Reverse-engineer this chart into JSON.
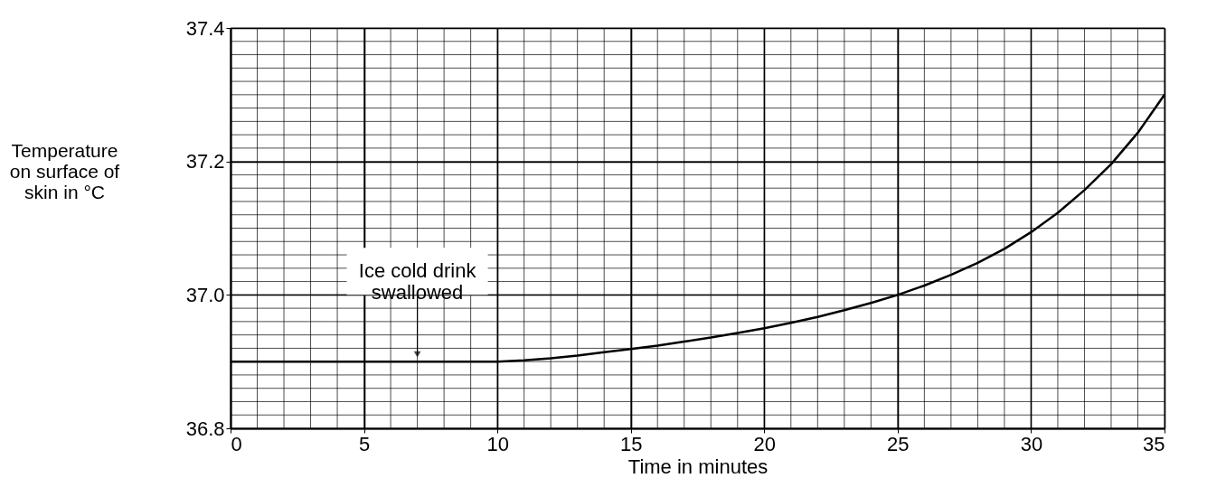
{
  "chart_data": {
    "type": "line",
    "xlabel": "Time in minutes",
    "ylabel": "Temperature\non surface of\nskin in °C",
    "x": [
      0,
      2,
      4,
      6,
      8,
      10,
      11,
      12,
      13,
      14,
      15,
      16,
      17,
      18,
      19,
      20,
      21,
      22,
      23,
      24,
      25,
      26,
      27,
      28,
      29,
      30,
      31,
      32,
      33,
      34,
      35
    ],
    "series": [
      {
        "color": "#000000",
        "values": [
          36.9,
          36.9,
          36.9,
          36.9,
          36.9,
          36.9,
          36.902,
          36.905,
          36.909,
          36.914,
          36.919,
          36.924,
          36.93,
          36.936,
          36.943,
          36.95,
          36.958,
          36.967,
          36.977,
          36.988,
          37.0,
          37.014,
          37.03,
          37.048,
          37.069,
          37.094,
          37.123,
          37.157,
          37.196,
          37.243,
          37.3
        ]
      }
    ],
    "xlim": [
      0,
      35
    ],
    "xticks": [
      0,
      5,
      10,
      15,
      20,
      25,
      30,
      35
    ],
    "ylim": [
      36.8,
      37.4
    ],
    "yticks": [
      36.8,
      {
        "value": 37,
        "label": "37.0"
      },
      37.2,
      37.4
    ],
    "grid": true,
    "line_style": "solid",
    "marker": "none",
    "annotations": [
      {
        "text": "Ice cold drink\nswallowed",
        "x": 7,
        "y": 36.9
      }
    ]
  }
}
